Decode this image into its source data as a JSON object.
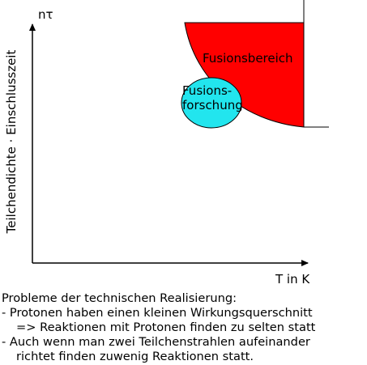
{
  "diagram": {
    "y_axis_symbol": "nτ",
    "y_axis_label": "Teilchendichte · Einschlusszeit",
    "x_axis_label": "T in K",
    "regions": {
      "fusion_area": "Fusionsbereich",
      "research": [
        "Fusions-",
        "forschung"
      ]
    }
  },
  "notes": {
    "heading": "Probleme der technischen Realisierung:",
    "items": [
      "- Protonen haben einen kleinen Wirkungsquerschnitt",
      "=> Reaktionen mit Protonen finden zu selten statt",
      "- Auch wenn man zwei Teilchenstrahlen aufeinander",
      "richtet finden zuwenig Reaktionen statt."
    ]
  }
}
